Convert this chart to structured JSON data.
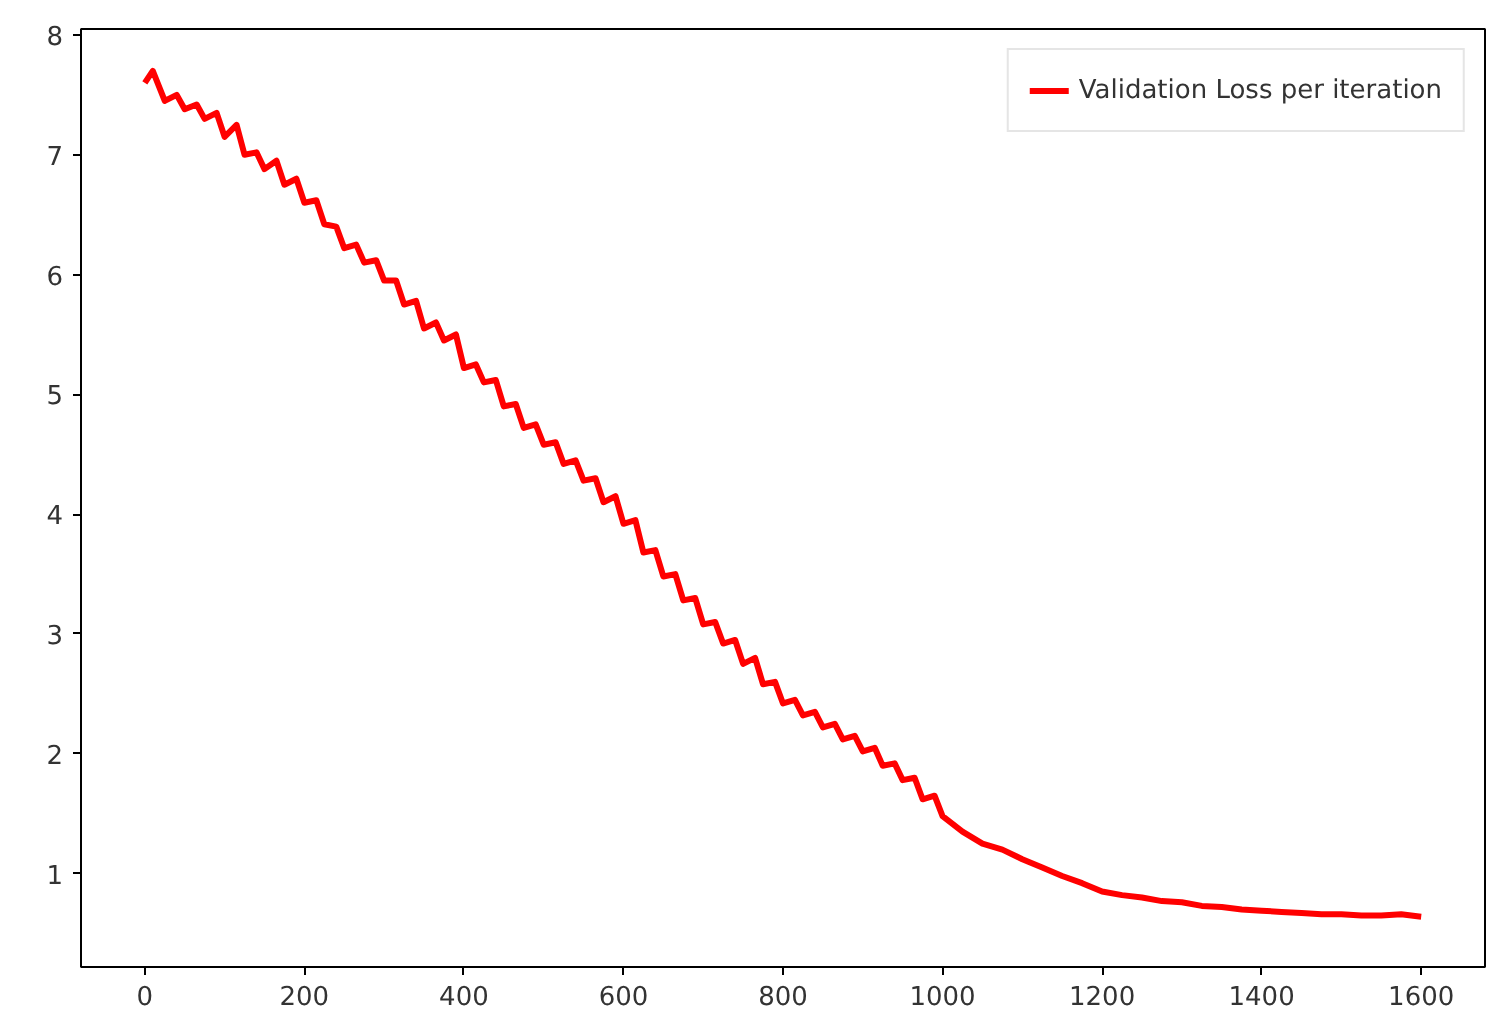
{
  "chart_data": {
    "type": "line",
    "x": [
      0,
      10,
      25,
      40,
      50,
      65,
      75,
      90,
      100,
      115,
      125,
      140,
      150,
      165,
      175,
      190,
      200,
      215,
      225,
      240,
      250,
      265,
      275,
      290,
      300,
      315,
      325,
      340,
      350,
      365,
      375,
      390,
      400,
      415,
      425,
      440,
      450,
      465,
      475,
      490,
      500,
      515,
      525,
      540,
      550,
      565,
      575,
      590,
      600,
      615,
      625,
      640,
      650,
      665,
      675,
      690,
      700,
      715,
      725,
      740,
      750,
      765,
      775,
      790,
      800,
      815,
      825,
      840,
      850,
      865,
      875,
      890,
      900,
      915,
      925,
      940,
      950,
      965,
      975,
      990,
      1000,
      1025,
      1050,
      1075,
      1100,
      1125,
      1150,
      1175,
      1200,
      1225,
      1250,
      1275,
      1300,
      1325,
      1350,
      1375,
      1400,
      1425,
      1450,
      1475,
      1500,
      1525,
      1550,
      1575,
      1600
    ],
    "series": [
      {
        "name": "Validation Loss per iteration",
        "color": "#ff0000",
        "values": [
          7.6,
          7.7,
          7.45,
          7.5,
          7.38,
          7.42,
          7.3,
          7.35,
          7.15,
          7.25,
          7.0,
          7.02,
          6.88,
          6.95,
          6.75,
          6.8,
          6.6,
          6.62,
          6.42,
          6.4,
          6.22,
          6.25,
          6.1,
          6.12,
          5.95,
          5.95,
          5.75,
          5.78,
          5.55,
          5.6,
          5.45,
          5.5,
          5.22,
          5.25,
          5.1,
          5.12,
          4.9,
          4.92,
          4.72,
          4.75,
          4.58,
          4.6,
          4.42,
          4.45,
          4.28,
          4.3,
          4.1,
          4.15,
          3.92,
          3.95,
          3.68,
          3.7,
          3.48,
          3.5,
          3.28,
          3.3,
          3.08,
          3.1,
          2.92,
          2.95,
          2.75,
          2.8,
          2.58,
          2.6,
          2.42,
          2.45,
          2.32,
          2.35,
          2.22,
          2.25,
          2.12,
          2.15,
          2.02,
          2.05,
          1.9,
          1.92,
          1.78,
          1.8,
          1.62,
          1.65,
          1.48,
          1.35,
          1.25,
          1.2,
          1.12,
          1.05,
          0.98,
          0.92,
          0.85,
          0.82,
          0.8,
          0.77,
          0.76,
          0.73,
          0.72,
          0.7,
          0.69,
          0.68,
          0.67,
          0.66,
          0.66,
          0.65,
          0.65,
          0.66,
          0.64
        ]
      }
    ],
    "xlim": [
      -80,
      1680
    ],
    "ylim": [
      0.22,
      8.05
    ],
    "xticks": [
      0,
      200,
      400,
      600,
      800,
      1000,
      1200,
      1400,
      1600
    ],
    "yticks": [
      1,
      2,
      3,
      4,
      5,
      6,
      7,
      8
    ],
    "legend": "top right",
    "grid": false
  }
}
